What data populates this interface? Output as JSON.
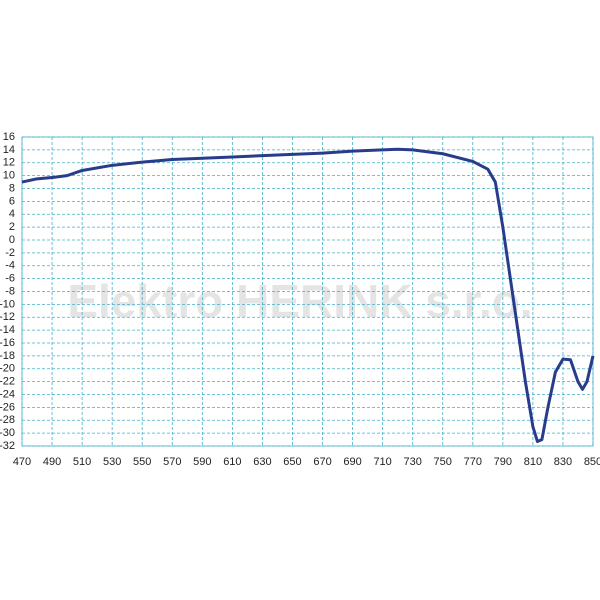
{
  "chart_data": {
    "type": "line",
    "watermark": "Elektro HERINK s.r.o.",
    "x": [
      470,
      480,
      490,
      500,
      510,
      530,
      550,
      570,
      590,
      610,
      630,
      650,
      670,
      690,
      710,
      720,
      730,
      750,
      770,
      780,
      785,
      790,
      795,
      800,
      805,
      810,
      813,
      816,
      820,
      825,
      830,
      835,
      840,
      843,
      846,
      850
    ],
    "series": [
      {
        "color": "#283c8c",
        "values": [
          9,
          9.5,
          9.7,
          10,
          10.8,
          11.6,
          12.1,
          12.5,
          12.7,
          12.9,
          13.1,
          13.3,
          13.5,
          13.8,
          14.0,
          14.1,
          14.0,
          13.4,
          12.2,
          11,
          9,
          2,
          -6,
          -14,
          -22,
          -29,
          -31.3,
          -31,
          -26,
          -20.5,
          -18.5,
          -18.6,
          -22,
          -23.2,
          -22,
          -18
        ]
      }
    ],
    "xlim": [
      470,
      850
    ],
    "xticks": [
      470,
      490,
      510,
      530,
      550,
      570,
      590,
      610,
      630,
      650,
      670,
      690,
      710,
      730,
      750,
      770,
      790,
      810,
      830,
      850
    ],
    "ylim": [
      -32,
      16
    ],
    "yticks": [
      16,
      14,
      12,
      10,
      8,
      6,
      4,
      2,
      0,
      -2,
      -4,
      -6,
      -8,
      -10,
      -12,
      -14,
      -16,
      -18,
      -20,
      -22,
      -24,
      -26,
      -28,
      -30,
      -32
    ],
    "grid": true
  }
}
